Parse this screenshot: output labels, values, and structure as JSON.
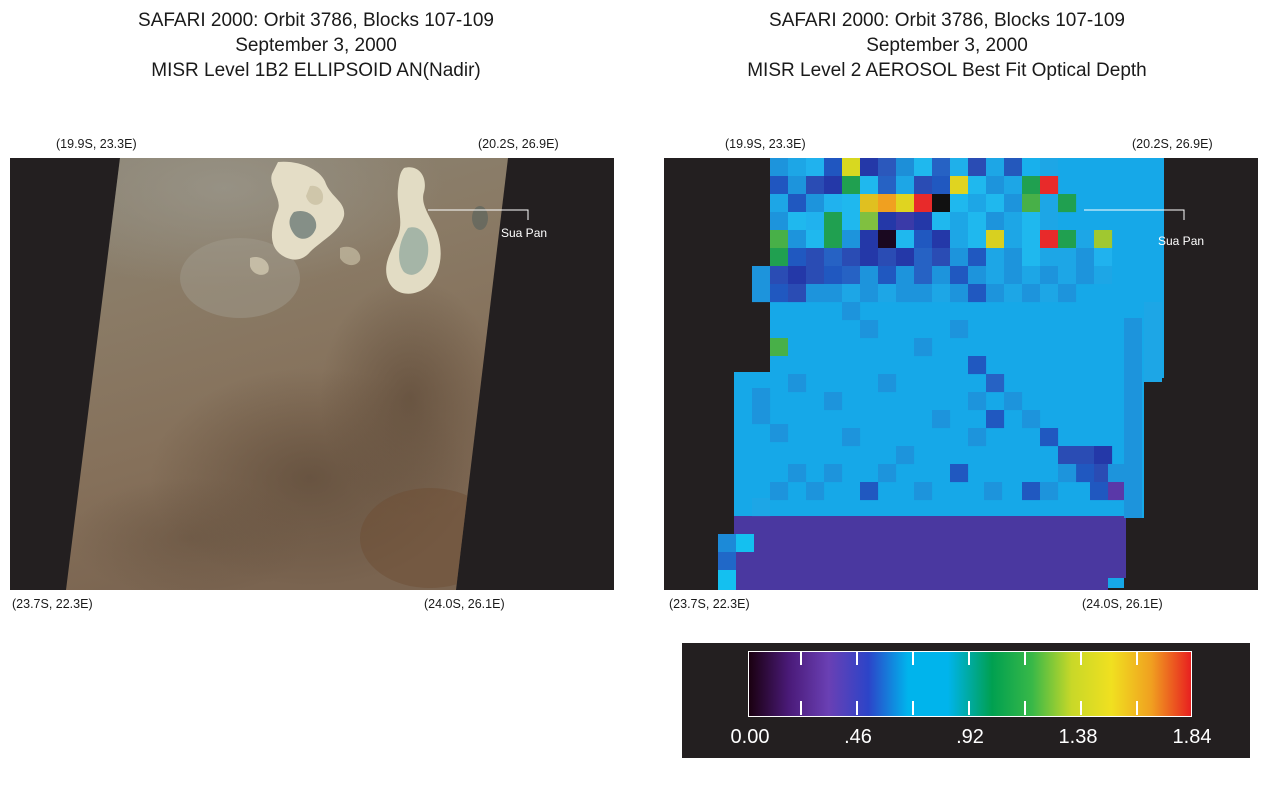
{
  "left_title": {
    "line1": "SAFARI 2000:  Orbit 3786, Blocks 107-109",
    "line2": "September 3, 2000",
    "line3": "MISR Level 1B2 ELLIPSOID AN(Nadir)"
  },
  "right_title": {
    "line1": "SAFARI 2000:  Orbit 3786, Blocks 107-109",
    "line2": "September 3, 2000",
    "line3": "MISR Level 2 AEROSOL Best Fit Optical Depth"
  },
  "left_coords": {
    "top_left": "(19.9S, 23.3E)",
    "top_right": "(20.2S, 26.9E)",
    "bottom_left": "(23.7S, 22.3E)",
    "bottom_right": "(24.0S, 26.1E)"
  },
  "right_coords": {
    "top_left": "(19.9S, 23.3E)",
    "top_right": "(20.2S, 26.9E)",
    "bottom_left": "(23.7S, 22.3E)",
    "bottom_right": "(24.0S, 26.1E)"
  },
  "callout_label_left": "Sua Pan",
  "callout_label_right": "Sua Pan",
  "colorbar": {
    "labels": [
      "0.00",
      ".46",
      ".92",
      "1.38",
      "1.84"
    ],
    "min": 0,
    "max": 1.84,
    "colors": [
      "#1a0010",
      "#4a1a78",
      "#6a40b4",
      "#2c44c8",
      "#00b4ec",
      "#00b4ec",
      "#00a050",
      "#38b848",
      "#c8d828",
      "#f0e020",
      "#f0a020",
      "#e82020"
    ]
  }
}
